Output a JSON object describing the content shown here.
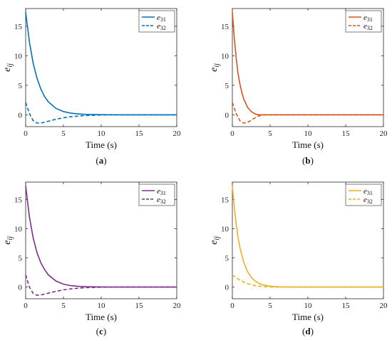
{
  "chart_data": [
    {
      "type": "line",
      "panel_label": "(a)",
      "xlabel": "Time (s)",
      "ylabel": "e_ij",
      "xlim": [
        0,
        20
      ],
      "ylim": [
        -2,
        18
      ],
      "xticks": [
        0,
        5,
        10,
        15,
        20
      ],
      "yticks": [
        0,
        5,
        10,
        15
      ],
      "grid": false,
      "legend_position": "top-right",
      "color": "#0072BD",
      "series": [
        {
          "name": "e31",
          "style": "solid",
          "x": [
            0,
            0.5,
            1,
            1.5,
            2,
            2.5,
            3,
            4,
            5,
            6,
            7,
            8,
            10,
            12,
            15,
            20
          ],
          "y": [
            17.4,
            12.3,
            8.7,
            6.2,
            4.4,
            3.1,
            2.2,
            1.1,
            0.55,
            0.28,
            0.14,
            0.07,
            0.02,
            0.0,
            0.0,
            0.0
          ]
        },
        {
          "name": "e32",
          "style": "dashed",
          "x": [
            0,
            0.5,
            1,
            1.5,
            2,
            3,
            4,
            5,
            6,
            7,
            8,
            10,
            12,
            15,
            20
          ],
          "y": [
            2.1,
            0.2,
            -1.0,
            -1.4,
            -1.4,
            -1.1,
            -0.75,
            -0.5,
            -0.32,
            -0.2,
            -0.12,
            -0.04,
            0.0,
            0.0,
            0.0
          ]
        }
      ]
    },
    {
      "type": "line",
      "panel_label": "(b)",
      "xlabel": "Time (s)",
      "ylabel": "e_ij",
      "xlim": [
        0,
        20
      ],
      "ylim": [
        -2,
        18
      ],
      "xticks": [
        0,
        5,
        10,
        15,
        20
      ],
      "yticks": [
        0,
        5,
        10,
        15
      ],
      "grid": false,
      "legend_position": "top-right",
      "color": "#D95319",
      "series": [
        {
          "name": "e31",
          "style": "solid",
          "x": [
            0,
            0.25,
            0.5,
            0.75,
            1,
            1.25,
            1.5,
            2,
            2.5,
            3,
            3.5,
            4,
            5,
            10,
            20
          ],
          "y": [
            17.4,
            13.2,
            9.7,
            7.1,
            5.2,
            3.8,
            2.7,
            1.3,
            0.55,
            0.15,
            0.0,
            0.0,
            0.0,
            0.0,
            0.0
          ]
        },
        {
          "name": "e32",
          "style": "dashed",
          "x": [
            0,
            0.5,
            1,
            1.5,
            2,
            2.5,
            3,
            3.5,
            4,
            5,
            10,
            20
          ],
          "y": [
            2.1,
            0.2,
            -1.0,
            -1.4,
            -1.3,
            -0.9,
            -0.5,
            -0.2,
            0.0,
            0.0,
            0.0,
            0.0
          ]
        }
      ]
    },
    {
      "type": "line",
      "panel_label": "(c)",
      "xlabel": "Time (s)",
      "ylabel": "e_ij",
      "xlim": [
        0,
        20
      ],
      "ylim": [
        -2,
        18
      ],
      "xticks": [
        0,
        5,
        10,
        15,
        20
      ],
      "yticks": [
        0,
        5,
        10,
        15
      ],
      "grid": false,
      "legend_position": "top-right",
      "color": "#7E2F8E",
      "series": [
        {
          "name": "e31",
          "style": "solid",
          "x": [
            0,
            0.5,
            1,
            1.5,
            2,
            2.5,
            3,
            4,
            5,
            6,
            7,
            8,
            10,
            12,
            15,
            20
          ],
          "y": [
            17.4,
            12.0,
            8.4,
            5.9,
            4.2,
            3.0,
            2.1,
            1.05,
            0.5,
            0.25,
            0.12,
            0.06,
            0.02,
            0.0,
            0.0,
            0.0
          ]
        },
        {
          "name": "e32",
          "style": "dashed",
          "x": [
            0,
            0.5,
            1,
            1.5,
            2,
            3,
            4,
            5,
            6,
            7,
            8,
            10,
            12,
            15,
            20
          ],
          "y": [
            2.1,
            0.0,
            -1.1,
            -1.4,
            -1.35,
            -1.05,
            -0.72,
            -0.48,
            -0.3,
            -0.18,
            -0.1,
            -0.03,
            0.0,
            0.0,
            0.0
          ]
        }
      ]
    },
    {
      "type": "line",
      "panel_label": "(d)",
      "xlabel": "Time (s)",
      "ylabel": "e_ij",
      "xlim": [
        0,
        20
      ],
      "ylim": [
        -2,
        18
      ],
      "xticks": [
        0,
        5,
        10,
        15,
        20
      ],
      "yticks": [
        0,
        5,
        10,
        15
      ],
      "grid": false,
      "legend_position": "top-right",
      "color": "#EDB120",
      "series": [
        {
          "name": "e31",
          "style": "solid",
          "x": [
            0,
            0.25,
            0.5,
            0.75,
            1,
            1.5,
            2,
            2.5,
            3,
            3.5,
            4,
            5,
            6,
            8,
            10,
            20
          ],
          "y": [
            17.4,
            13.8,
            10.9,
            8.6,
            6.8,
            4.3,
            2.7,
            1.7,
            1.05,
            0.65,
            0.4,
            0.15,
            0.05,
            0.0,
            0.0,
            0.0
          ]
        },
        {
          "name": "e32",
          "style": "dashed",
          "x": [
            0,
            0.5,
            1,
            1.5,
            2,
            2.5,
            3,
            3.5,
            4,
            5,
            6,
            8,
            10,
            20
          ],
          "y": [
            2.1,
            1.6,
            1.2,
            0.85,
            0.6,
            0.4,
            0.27,
            0.17,
            0.1,
            0.03,
            0.0,
            0.0,
            0.0,
            0.0
          ]
        }
      ]
    }
  ]
}
